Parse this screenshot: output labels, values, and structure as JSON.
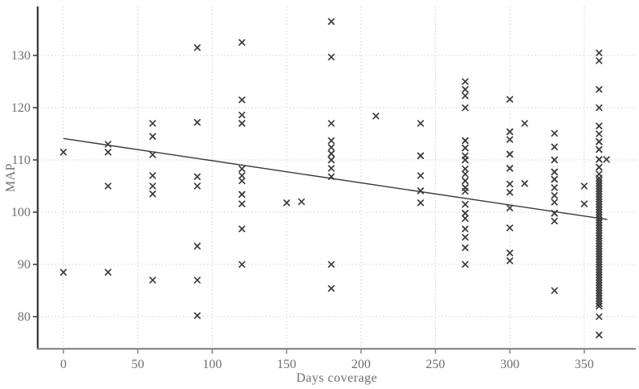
{
  "figure": {
    "xlabel": "Days coverage",
    "ylabel": "MAP"
  },
  "colors": {
    "marker": "#3a3a3a",
    "trend_line": "#3a3a3a",
    "grid": "#cfcfcf",
    "tick_label": "#6e6e6e",
    "left_spine": "#3f3f3f",
    "bottom_spine": "#8a8a8a",
    "background": "#ffffff"
  },
  "chart_data": {
    "type": "scatter",
    "title": "",
    "xlabel": "Days coverage",
    "ylabel": "MAP",
    "marker": "x",
    "grid": true,
    "legend": "none",
    "x_ticks": [
      0,
      50,
      100,
      150,
      200,
      250,
      300,
      350
    ],
    "y_ticks": [
      80,
      90,
      100,
      110,
      120,
      130
    ],
    "xlim": [
      -17,
      385
    ],
    "ylim": [
      74,
      139.5
    ],
    "trend": {
      "x": [
        0,
        365.5
      ],
      "y": [
        114.1,
        98.6
      ]
    },
    "points": [
      [
        0,
        111.5
      ],
      [
        0,
        88.5
      ],
      [
        30,
        113
      ],
      [
        30,
        111.5
      ],
      [
        30,
        105
      ],
      [
        30,
        88.5
      ],
      [
        60,
        117
      ],
      [
        60,
        114.5
      ],
      [
        60,
        111
      ],
      [
        60,
        107
      ],
      [
        60,
        105
      ],
      [
        60,
        103.5
      ],
      [
        60,
        87
      ],
      [
        90,
        131.5
      ],
      [
        90,
        117.2
      ],
      [
        90,
        106.8
      ],
      [
        90,
        105
      ],
      [
        90,
        93.5
      ],
      [
        90,
        87
      ],
      [
        90,
        80.2
      ],
      [
        120,
        132.5
      ],
      [
        120,
        121.5
      ],
      [
        120,
        118.6
      ],
      [
        120,
        117
      ],
      [
        120,
        117
      ],
      [
        120,
        108.3
      ],
      [
        120,
        107
      ],
      [
        120,
        106
      ],
      [
        120,
        103.4
      ],
      [
        120,
        103.4
      ],
      [
        120,
        101.6
      ],
      [
        120,
        96.8
      ],
      [
        120,
        90
      ],
      [
        150,
        101.8
      ],
      [
        160,
        102
      ],
      [
        180,
        136.5
      ],
      [
        180,
        129.7
      ],
      [
        180,
        117
      ],
      [
        180,
        113.7
      ],
      [
        180,
        112.4
      ],
      [
        180,
        111.2
      ],
      [
        180,
        111.2
      ],
      [
        180,
        110
      ],
      [
        180,
        110
      ],
      [
        180,
        108.4
      ],
      [
        180,
        106.8
      ],
      [
        180,
        90
      ],
      [
        180,
        85.4
      ],
      [
        210,
        118.4
      ],
      [
        240,
        117
      ],
      [
        240,
        110.8
      ],
      [
        240,
        110.8
      ],
      [
        240,
        107
      ],
      [
        240,
        104.1
      ],
      [
        240,
        104.1
      ],
      [
        240,
        101.8
      ],
      [
        270,
        125
      ],
      [
        270,
        123.5
      ],
      [
        270,
        122.3
      ],
      [
        270,
        120
      ],
      [
        270,
        113.7
      ],
      [
        270,
        113.7
      ],
      [
        270,
        112.3
      ],
      [
        270,
        112.3
      ],
      [
        270,
        110.8
      ],
      [
        270,
        110
      ],
      [
        270,
        110
      ],
      [
        270,
        108.3
      ],
      [
        270,
        107.3
      ],
      [
        270,
        106
      ],
      [
        270,
        106
      ],
      [
        270,
        104.7
      ],
      [
        270,
        104.7
      ],
      [
        270,
        104
      ],
      [
        270,
        101.5
      ],
      [
        270,
        99.8
      ],
      [
        270,
        99.8
      ],
      [
        270,
        98.8
      ],
      [
        270,
        96.8
      ],
      [
        270,
        95.2
      ],
      [
        270,
        93.2
      ],
      [
        270,
        90
      ],
      [
        300,
        121.6
      ],
      [
        300,
        115.4
      ],
      [
        300,
        115.4
      ],
      [
        300,
        113.9
      ],
      [
        300,
        111.1
      ],
      [
        300,
        111.1
      ],
      [
        300,
        108.4
      ],
      [
        300,
        108.4
      ],
      [
        300,
        105.4
      ],
      [
        300,
        103.8
      ],
      [
        300,
        100.8
      ],
      [
        300,
        97
      ],
      [
        300,
        92.2
      ],
      [
        300,
        90.7
      ],
      [
        310,
        117
      ],
      [
        310,
        105.5
      ],
      [
        330,
        115.1
      ],
      [
        330,
        112.5
      ],
      [
        330,
        110
      ],
      [
        330,
        110
      ],
      [
        330,
        107.7
      ],
      [
        330,
        107.7
      ],
      [
        330,
        106.3
      ],
      [
        330,
        106.3
      ],
      [
        330,
        104.7
      ],
      [
        330,
        103.2
      ],
      [
        330,
        101.9
      ],
      [
        330,
        99.8
      ],
      [
        330,
        99.8
      ],
      [
        330,
        98.3
      ],
      [
        330,
        85
      ],
      [
        350,
        105
      ],
      [
        350,
        101.6
      ],
      [
        360,
        130.5
      ],
      [
        360,
        129
      ],
      [
        360,
        123.5
      ],
      [
        360,
        120
      ],
      [
        360,
        116.5
      ],
      [
        360,
        115
      ],
      [
        360,
        113.5
      ],
      [
        360,
        113.5
      ],
      [
        360,
        112
      ],
      [
        360,
        112
      ],
      [
        360,
        110.1
      ],
      [
        360,
        110.1
      ],
      [
        360,
        108.6
      ],
      [
        360,
        108.6
      ],
      [
        360,
        107.3
      ],
      [
        360,
        106.5
      ],
      [
        360,
        106
      ],
      [
        360,
        105.5
      ],
      [
        360,
        105
      ],
      [
        360,
        104.5
      ],
      [
        360,
        104
      ],
      [
        360,
        103.5
      ],
      [
        360,
        103
      ],
      [
        360,
        102.5
      ],
      [
        360,
        102
      ],
      [
        360,
        101.5
      ],
      [
        360,
        101
      ],
      [
        360,
        100.5
      ],
      [
        360,
        100
      ],
      [
        360,
        99.5
      ],
      [
        360,
        99
      ],
      [
        360,
        98.5
      ],
      [
        360,
        98
      ],
      [
        360,
        97.5
      ],
      [
        360,
        97
      ],
      [
        360,
        96.5
      ],
      [
        360,
        96
      ],
      [
        360,
        95.5
      ],
      [
        360,
        95
      ],
      [
        360,
        94.5
      ],
      [
        360,
        94
      ],
      [
        360,
        93.5
      ],
      [
        360,
        93
      ],
      [
        360,
        92.5
      ],
      [
        360,
        92
      ],
      [
        360,
        91.5
      ],
      [
        360,
        91
      ],
      [
        360,
        90.5
      ],
      [
        360,
        90
      ],
      [
        360,
        89.5
      ],
      [
        360,
        89
      ],
      [
        360,
        88.5
      ],
      [
        360,
        88
      ],
      [
        360,
        87.5
      ],
      [
        360,
        87
      ],
      [
        360,
        86.5
      ],
      [
        360,
        86
      ],
      [
        360,
        85.5
      ],
      [
        360,
        85
      ],
      [
        360,
        84.5
      ],
      [
        360,
        84
      ],
      [
        360,
        83.5
      ],
      [
        360,
        83
      ],
      [
        360,
        82.5
      ],
      [
        360,
        82
      ],
      [
        360,
        80
      ],
      [
        360,
        76.5
      ],
      [
        365,
        110.1
      ]
    ]
  }
}
